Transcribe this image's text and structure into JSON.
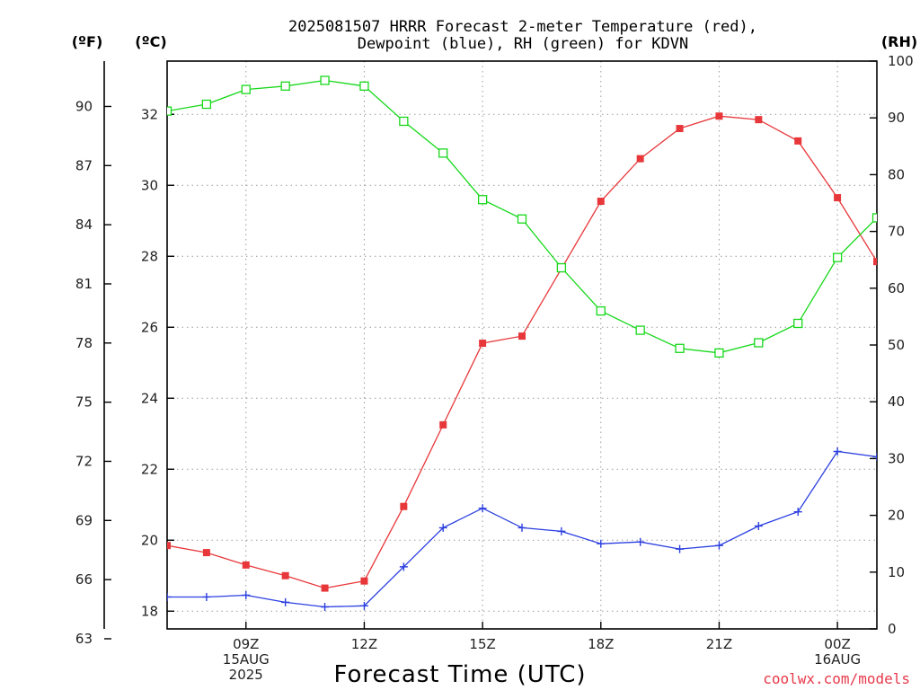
{
  "title_lines": [
    "2025081507 HRRR Forecast 2-meter Temperature (red),",
    "Dewpoint (blue), RH (green) for KDVN"
  ],
  "unit_labels": {
    "f": "(ºF)",
    "c": "(ºC)",
    "rh": "(RH)"
  },
  "xlabel": "Forecast Time (UTC)",
  "x_ticks": [
    {
      "hour": 9,
      "lines": [
        "09Z",
        "15AUG",
        "2025"
      ]
    },
    {
      "hour": 12,
      "lines": [
        "12Z"
      ]
    },
    {
      "hour": 15,
      "lines": [
        "15Z"
      ]
    },
    {
      "hour": 18,
      "lines": [
        "18Z"
      ]
    },
    {
      "hour": 21,
      "lines": [
        "21Z"
      ]
    },
    {
      "hour": 24,
      "lines": [
        "00Z",
        "16AUG"
      ]
    }
  ],
  "credit": "coolwx.com/models",
  "colors": {
    "temperature": "#e8373a",
    "dewpoint": "#2b3fe0",
    "rh": "#17d81a"
  },
  "chart_data": {
    "type": "line",
    "x_unit": "hour UTC (08/15/2025; 24 = 00Z 08/16)",
    "xlim": [
      7,
      25
    ],
    "left_axis_c": {
      "ylim": [
        17.5,
        33.5
      ],
      "ticks": [
        18,
        20,
        22,
        24,
        26,
        28,
        30,
        32
      ]
    },
    "left_axis_f": {
      "ticks": [
        63,
        66,
        69,
        72,
        75,
        78,
        81,
        84,
        87,
        90
      ]
    },
    "right_axis_rh": {
      "ylim": [
        0,
        100
      ],
      "ticks": [
        0,
        10,
        20,
        30,
        40,
        50,
        60,
        70,
        80,
        90,
        100
      ]
    },
    "x": [
      7,
      8,
      9,
      10,
      11,
      12,
      13,
      14,
      15,
      16,
      17,
      18,
      19,
      20,
      21,
      22,
      23,
      24,
      25
    ],
    "series": [
      {
        "key": "temperature",
        "axis": "c",
        "values": [
          19.85,
          19.65,
          19.3,
          19.0,
          18.65,
          18.85,
          20.95,
          23.25,
          25.55,
          25.75,
          27.65,
          29.55,
          30.75,
          31.6,
          31.95,
          31.85,
          31.25,
          29.65,
          27.85
        ]
      },
      {
        "key": "dewpoint",
        "axis": "c",
        "values": [
          18.4,
          18.4,
          18.45,
          18.25,
          18.12,
          18.15,
          19.25,
          20.35,
          20.9,
          20.35,
          20.25,
          19.9,
          19.95,
          19.75,
          19.85,
          20.4,
          20.8,
          22.5,
          22.35
        ]
      },
      {
        "key": "rh",
        "axis": "rh",
        "values": [
          91.2,
          92.4,
          95.0,
          95.6,
          96.6,
          95.6,
          89.4,
          83.8,
          75.6,
          72.2,
          63.6,
          56.0,
          52.6,
          49.4,
          48.6,
          50.4,
          53.8,
          65.4,
          72.4
        ]
      }
    ]
  }
}
